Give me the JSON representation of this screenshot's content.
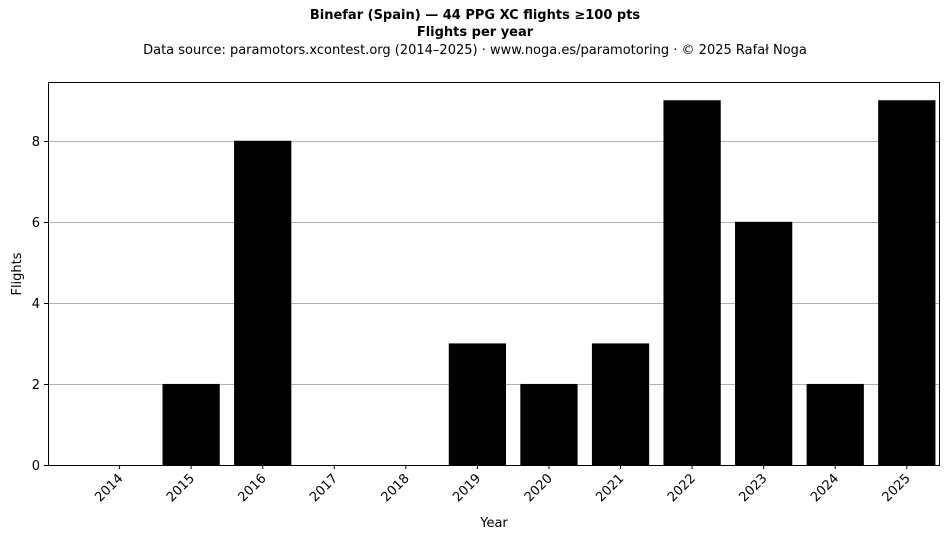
{
  "chart_data": {
    "type": "bar",
    "title": "Binefar (Spain)  —  44 PPG XC flights ≥100 pts",
    "subtitle": "Flights per year",
    "source_note": "Data source: paramotors.xcontest.org (2014–2025)  ·  www.noga.es/paramotoring  ·  © 2025 Rafał Noga",
    "xlabel": "Year",
    "ylabel": "Flights",
    "categories": [
      "2014",
      "2015",
      "2016",
      "2017",
      "2018",
      "2019",
      "2020",
      "2021",
      "2022",
      "2023",
      "2024",
      "2025"
    ],
    "values": [
      0,
      2,
      8,
      0,
      0,
      3,
      2,
      3,
      9,
      6,
      2,
      9
    ],
    "yticks": [
      0,
      2,
      4,
      6,
      8
    ],
    "ylim": [
      0,
      9.45
    ],
    "grid": "y",
    "bar_color": "#000000",
    "grid_color": "#b0b0b0"
  }
}
